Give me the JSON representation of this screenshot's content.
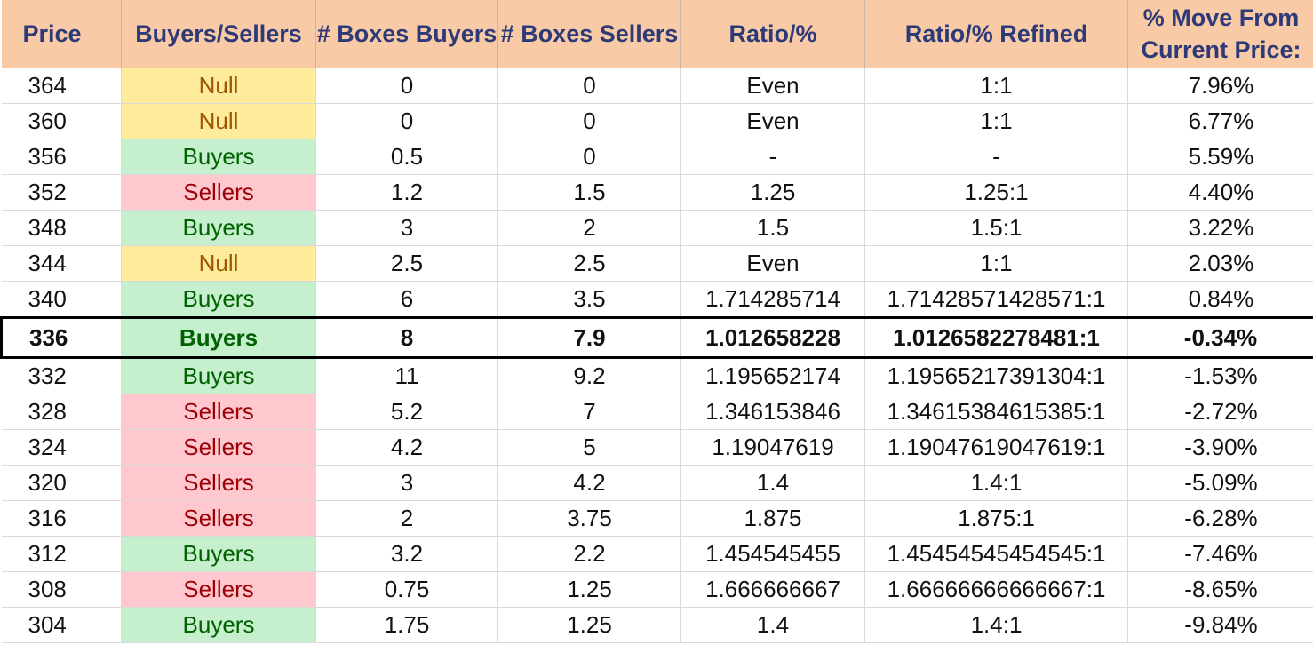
{
  "headers": [
    "Price",
    "Buyers/Sellers",
    "# Boxes Buyers",
    "# Boxes Sellers",
    "Ratio/%",
    "Ratio/% Refined",
    "% Move From\nCurrent Price:"
  ],
  "colors": {
    "header_bg": "#f8cba6",
    "header_text": "#2e3a78",
    "null_bg": "#ffeb9c",
    "null_text": "#9c5700",
    "buyers_bg": "#c6efce",
    "buyers_text": "#006100",
    "sellers_bg": "#ffc7ce",
    "sellers_text": "#9c0006"
  },
  "rows": [
    {
      "price": "364",
      "bs": "Null",
      "boxes_buyers": "0",
      "boxes_sellers": "0",
      "ratio": "Even",
      "ratio_refined": "1:1",
      "move": "7.96%"
    },
    {
      "price": "360",
      "bs": "Null",
      "boxes_buyers": "0",
      "boxes_sellers": "0",
      "ratio": "Even",
      "ratio_refined": "1:1",
      "move": "6.77%"
    },
    {
      "price": "356",
      "bs": "Buyers",
      "boxes_buyers": "0.5",
      "boxes_sellers": "0",
      "ratio": "-",
      "ratio_refined": "-",
      "move": "5.59%"
    },
    {
      "price": "352",
      "bs": "Sellers",
      "boxes_buyers": "1.2",
      "boxes_sellers": "1.5",
      "ratio": "1.25",
      "ratio_refined": "1.25:1",
      "move": "4.40%"
    },
    {
      "price": "348",
      "bs": "Buyers",
      "boxes_buyers": "3",
      "boxes_sellers": "2",
      "ratio": "1.5",
      "ratio_refined": "1.5:1",
      "move": "3.22%"
    },
    {
      "price": "344",
      "bs": "Null",
      "boxes_buyers": "2.5",
      "boxes_sellers": "2.5",
      "ratio": "Even",
      "ratio_refined": "1:1",
      "move": "2.03%"
    },
    {
      "price": "340",
      "bs": "Buyers",
      "boxes_buyers": "6",
      "boxes_sellers": "3.5",
      "ratio": "1.714285714",
      "ratio_refined": "1.71428571428571:1",
      "move": "0.84%"
    },
    {
      "price": "336",
      "bs": "Buyers",
      "boxes_buyers": "8",
      "boxes_sellers": "7.9",
      "ratio": "1.012658228",
      "ratio_refined": "1.0126582278481:1",
      "move": "-0.34%",
      "current": true
    },
    {
      "price": "332",
      "bs": "Buyers",
      "boxes_buyers": "11",
      "boxes_sellers": "9.2",
      "ratio": "1.195652174",
      "ratio_refined": "1.19565217391304:1",
      "move": "-1.53%"
    },
    {
      "price": "328",
      "bs": "Sellers",
      "boxes_buyers": "5.2",
      "boxes_sellers": "7",
      "ratio": "1.346153846",
      "ratio_refined": "1.34615384615385:1",
      "move": "-2.72%"
    },
    {
      "price": "324",
      "bs": "Sellers",
      "boxes_buyers": "4.2",
      "boxes_sellers": "5",
      "ratio": "1.19047619",
      "ratio_refined": "1.19047619047619:1",
      "move": "-3.90%"
    },
    {
      "price": "320",
      "bs": "Sellers",
      "boxes_buyers": "3",
      "boxes_sellers": "4.2",
      "ratio": "1.4",
      "ratio_refined": "1.4:1",
      "move": "-5.09%"
    },
    {
      "price": "316",
      "bs": "Sellers",
      "boxes_buyers": "2",
      "boxes_sellers": "3.75",
      "ratio": "1.875",
      "ratio_refined": "1.875:1",
      "move": "-6.28%"
    },
    {
      "price": "312",
      "bs": "Buyers",
      "boxes_buyers": "3.2",
      "boxes_sellers": "2.2",
      "ratio": "1.454545455",
      "ratio_refined": "1.45454545454545:1",
      "move": "-7.46%"
    },
    {
      "price": "308",
      "bs": "Sellers",
      "boxes_buyers": "0.75",
      "boxes_sellers": "1.25",
      "ratio": "1.666666667",
      "ratio_refined": "1.66666666666667:1",
      "move": "-8.65%"
    },
    {
      "price": "304",
      "bs": "Buyers",
      "boxes_buyers": "1.75",
      "boxes_sellers": "1.25",
      "ratio": "1.4",
      "ratio_refined": "1.4:1",
      "move": "-9.84%"
    }
  ]
}
